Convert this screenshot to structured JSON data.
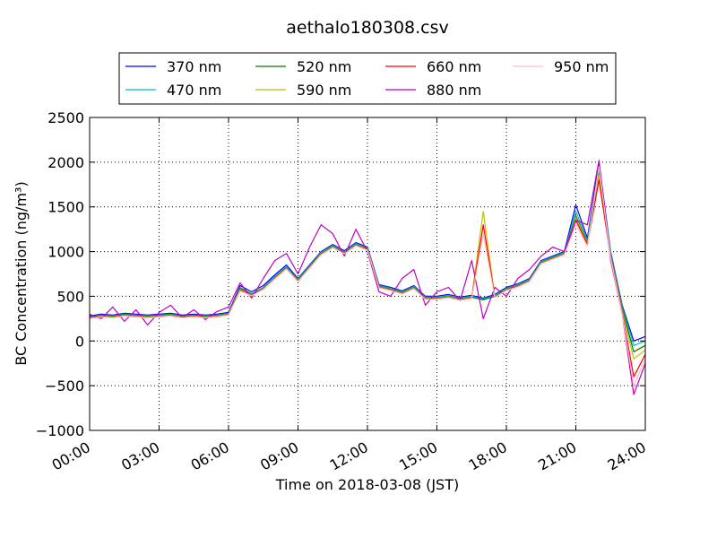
{
  "chart_data": {
    "type": "line",
    "title": "aethalo180308.csv",
    "xlabel": "Time on 2018-03-08 (JST)",
    "ylabel": "BC Concentration (ng/m³)",
    "xlim": [
      "00:00",
      "24:00"
    ],
    "ylim": [
      -1000,
      2500
    ],
    "grid": true,
    "legend_placement": "top (above plot, 4 columns)",
    "x_ticks": [
      "00:00",
      "03:00",
      "06:00",
      "09:00",
      "12:00",
      "15:00",
      "18:00",
      "21:00",
      "24:00"
    ],
    "y_ticks": [
      "−1000",
      "−500",
      "0",
      "500",
      "1000",
      "1500",
      "2000",
      "2500"
    ],
    "x": [
      "00:00",
      "00:30",
      "01:00",
      "01:30",
      "02:00",
      "02:30",
      "03:00",
      "03:30",
      "04:00",
      "04:30",
      "05:00",
      "05:30",
      "06:00",
      "06:30",
      "07:00",
      "07:30",
      "08:00",
      "08:30",
      "09:00",
      "09:30",
      "10:00",
      "10:30",
      "11:00",
      "11:30",
      "12:00",
      "12:30",
      "13:00",
      "13:30",
      "14:00",
      "14:30",
      "15:00",
      "15:30",
      "16:00",
      "16:30",
      "17:00",
      "17:30",
      "18:00",
      "18:30",
      "19:00",
      "19:30",
      "20:00",
      "20:30",
      "21:00",
      "21:30",
      "22:00",
      "22:30",
      "23:00",
      "23:30",
      "24:00"
    ],
    "series": [
      {
        "name": "370 nm",
        "color": "#0000ff",
        "values": [
          280,
          300,
          290,
          310,
          300,
          290,
          300,
          310,
          290,
          300,
          290,
          300,
          320,
          620,
          550,
          620,
          740,
          850,
          700,
          850,
          1000,
          1080,
          1010,
          1100,
          1050,
          630,
          600,
          560,
          620,
          500,
          500,
          520,
          490,
          510,
          480,
          520,
          600,
          640,
          700,
          900,
          950,
          1000,
          1520,
          1150,
          2000,
          1000,
          400,
          0,
          50
        ]
      },
      {
        "name": "470 nm",
        "color": "#00bfbf",
        "values": [
          270,
          290,
          280,
          300,
          290,
          280,
          290,
          300,
          280,
          290,
          280,
          290,
          310,
          600,
          530,
          600,
          720,
          830,
          690,
          840,
          990,
          1070,
          1000,
          1090,
          1040,
          620,
          590,
          550,
          610,
          490,
          490,
          510,
          480,
          500,
          470,
          510,
          590,
          630,
          690,
          890,
          940,
          990,
          1450,
          1120,
          1950,
          980,
          380,
          -50,
          0
        ]
      },
      {
        "name": "520 nm",
        "color": "#008000",
        "values": [
          265,
          285,
          275,
          295,
          285,
          275,
          285,
          295,
          275,
          285,
          275,
          285,
          305,
          590,
          520,
          590,
          710,
          820,
          680,
          830,
          980,
          1060,
          990,
          1080,
          1030,
          610,
          580,
          540,
          600,
          480,
          480,
          500,
          470,
          490,
          460,
          500,
          580,
          620,
          680,
          880,
          930,
          980,
          1400,
          1100,
          1900,
          960,
          360,
          -120,
          -50
        ]
      },
      {
        "name": "590 nm",
        "color": "#bfbf00",
        "values": [
          260,
          280,
          270,
          290,
          280,
          270,
          280,
          290,
          270,
          280,
          270,
          280,
          300,
          580,
          515,
          585,
          705,
          815,
          675,
          825,
          975,
          1055,
          985,
          1075,
          1025,
          605,
          575,
          535,
          595,
          475,
          475,
          495,
          465,
          485,
          1450,
          495,
          575,
          615,
          675,
          875,
          925,
          975,
          1380,
          1090,
          1850,
          950,
          340,
          -200,
          -100
        ]
      },
      {
        "name": "660 nm",
        "color": "#ff0000",
        "values": [
          255,
          275,
          265,
          285,
          275,
          265,
          275,
          285,
          265,
          275,
          265,
          275,
          295,
          570,
          510,
          580,
          700,
          810,
          670,
          820,
          970,
          1050,
          980,
          1070,
          1020,
          600,
          570,
          530,
          590,
          470,
          470,
          490,
          460,
          480,
          1300,
          490,
          570,
          610,
          670,
          870,
          920,
          970,
          1350,
          1080,
          1800,
          940,
          320,
          -400,
          -150
        ]
      },
      {
        "name": "880 nm",
        "color": "#bf00bf",
        "values": [
          300,
          250,
          380,
          220,
          350,
          180,
          320,
          400,
          260,
          350,
          240,
          330,
          380,
          650,
          480,
          700,
          900,
          980,
          750,
          1050,
          1300,
          1200,
          950,
          1250,
          1000,
          550,
          500,
          700,
          800,
          400,
          550,
          600,
          450,
          900,
          250,
          600,
          500,
          700,
          800,
          950,
          1050,
          1000,
          1350,
          1300,
          2020,
          900,
          300,
          -600,
          -250
        ]
      },
      {
        "name": "950 nm",
        "color": "#ffc0cb",
        "values": [
          250,
          270,
          260,
          280,
          270,
          260,
          270,
          280,
          260,
          270,
          260,
          270,
          290,
          560,
          505,
          575,
          695,
          805,
          665,
          815,
          965,
          1045,
          975,
          1065,
          1015,
          595,
          565,
          525,
          585,
          465,
          465,
          485,
          455,
          475,
          1200,
          485,
          565,
          605,
          665,
          865,
          915,
          965,
          1300,
          1060,
          1950,
          930,
          300,
          -500,
          -200
        ]
      }
    ]
  }
}
